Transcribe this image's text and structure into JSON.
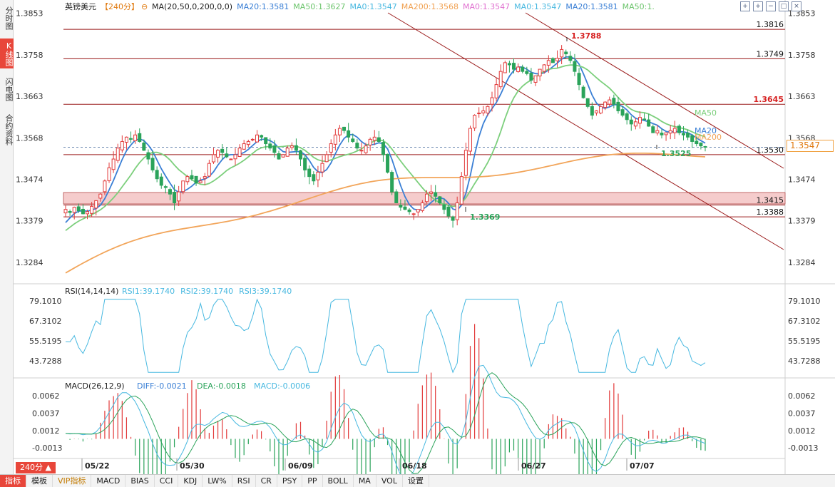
{
  "left_tabs": [
    {
      "label": "分时图",
      "active": false
    },
    {
      "label": "K线图",
      "active": true
    },
    {
      "label": "闪电图",
      "active": false
    },
    {
      "label": "合约资料",
      "active": false
    }
  ],
  "header": {
    "symbol": "英镑美元",
    "period": "【240分】",
    "ma_params": "MA(20,50,0,200,0,0)",
    "ma_values": [
      {
        "text": "MA20:1.3581",
        "color": "#3a7fd5"
      },
      {
        "text": "MA50:1.3627",
        "color": "#6cc46c"
      },
      {
        "text": "MA0:1.3547",
        "color": "#47b8e0"
      },
      {
        "text": "MA200:1.3568",
        "color": "#f0a050"
      },
      {
        "text": "MA0:1.3547",
        "color": "#e070d0"
      },
      {
        "text": "MA0:1.3547",
        "color": "#47b8e0"
      },
      {
        "text": "MA20:1.3581",
        "color": "#3a7fd5"
      },
      {
        "text": "MA50:1.",
        "color": "#6cc46c"
      }
    ]
  },
  "toolbar_icons": [
    "crosshair-icon",
    "zoom-in-icon",
    "zoom-out-icon",
    "fullscreen-icon",
    "close-icon"
  ],
  "price_axis": {
    "ticks": [
      "1.3853",
      "1.3758",
      "1.3663",
      "1.3568",
      "1.3474",
      "1.3379",
      "1.3284"
    ],
    "current_price": "1.3547"
  },
  "annotations": {
    "levels": [
      "1.3816",
      "1.3749",
      "1.3645",
      "1.3530",
      "1.3415",
      "1.3388"
    ],
    "high_label": "1.3788",
    "low_label": "1.3369",
    "recent_low_label": "1.3525",
    "ma_tags": [
      "MA50",
      "MA20",
      "MA200"
    ]
  },
  "rsi": {
    "title": "RSI(14,14,14)",
    "values": [
      "RSI1:39.1740",
      "RSI2:39.1740",
      "RSI3:39.1740"
    ],
    "ticks": [
      "79.1010",
      "67.3102",
      "55.5195",
      "43.7288"
    ]
  },
  "macd": {
    "title": "MACD(26,12,9)",
    "diff": "DIFF:-0.0021",
    "dea": "DEA:-0.0018",
    "macd": "MACD:-0.0006",
    "ticks": [
      "0.0062",
      "0.0037",
      "0.0012",
      "-0.0013"
    ]
  },
  "date_axis": [
    "05/22",
    "05/30",
    "06/09",
    "06/18",
    "06/27",
    "07/07"
  ],
  "period_badge": "240分 ▲",
  "bottom_tabs": [
    {
      "label": "指标",
      "active": true,
      "vip": false
    },
    {
      "label": "模板",
      "active": false,
      "vip": false
    },
    {
      "label": "VIP指标",
      "active": false,
      "vip": true
    },
    {
      "label": "MACD",
      "active": false,
      "vip": false
    },
    {
      "label": "BIAS",
      "active": false,
      "vip": false
    },
    {
      "label": "CCI",
      "active": false,
      "vip": false
    },
    {
      "label": "KDJ",
      "active": false,
      "vip": false
    },
    {
      "label": "LW%",
      "active": false,
      "vip": false
    },
    {
      "label": "RSI",
      "active": false,
      "vip": false
    },
    {
      "label": "CR",
      "active": false,
      "vip": false
    },
    {
      "label": "PSY",
      "active": false,
      "vip": false
    },
    {
      "label": "PP",
      "active": false,
      "vip": false
    },
    {
      "label": "BOLL",
      "active": false,
      "vip": false
    },
    {
      "label": "MA",
      "active": false,
      "vip": false
    },
    {
      "label": "VOL",
      "active": false,
      "vip": false
    },
    {
      "label": "设置",
      "active": false,
      "vip": false
    }
  ],
  "chart_data": {
    "type": "candlestick",
    "price_range": [
      1.3245,
      1.387
    ],
    "close_series": [
      1.3405,
      1.3398,
      1.341,
      1.3402,
      1.3395,
      1.34,
      1.3412,
      1.3425,
      1.344,
      1.347,
      1.35,
      1.352,
      1.3545,
      1.356,
      1.357,
      1.3565,
      1.3575,
      1.356,
      1.354,
      1.352,
      1.3495,
      1.3475,
      1.346,
      1.3455,
      1.344,
      1.342,
      1.3445,
      1.347,
      1.348,
      1.3475,
      1.3465,
      1.347,
      1.348,
      1.351,
      1.353,
      1.354,
      1.3535,
      1.3525,
      1.352,
      1.353,
      1.3545,
      1.3555,
      1.356,
      1.3565,
      1.3575,
      1.357,
      1.3555,
      1.3545,
      1.3535,
      1.352,
      1.353,
      1.3545,
      1.355,
      1.354,
      1.352,
      1.3495,
      1.348,
      1.347,
      1.349,
      1.351,
      1.353,
      1.3555,
      1.3575,
      1.359,
      1.3585,
      1.357,
      1.356,
      1.3545,
      1.354,
      1.355,
      1.3565,
      1.357,
      1.356,
      1.353,
      1.349,
      1.3445,
      1.342,
      1.341,
      1.3405,
      1.34,
      1.3395,
      1.3405,
      1.342,
      1.344,
      1.3445,
      1.3435,
      1.342,
      1.3405,
      1.339,
      1.338,
      1.342,
      1.348,
      1.354,
      1.359,
      1.362,
      1.3625,
      1.363,
      1.364,
      1.366,
      1.369,
      1.372,
      1.374,
      1.3735,
      1.3725,
      1.373,
      1.372,
      1.3715,
      1.37,
      1.371,
      1.3725,
      1.3735,
      1.3745,
      1.374,
      1.375,
      1.377,
      1.376,
      1.3745,
      1.372,
      1.369,
      1.366,
      1.364,
      1.362,
      1.363,
      1.364,
      1.365,
      1.3655,
      1.3645,
      1.363,
      1.362,
      1.361,
      1.36,
      1.3605,
      1.3615,
      1.361,
      1.3595,
      1.358,
      1.3585,
      1.3575,
      1.358,
      1.3585,
      1.359,
      1.358,
      1.3575,
      1.357,
      1.356,
      1.3555,
      1.355,
      1.3547
    ]
  }
}
